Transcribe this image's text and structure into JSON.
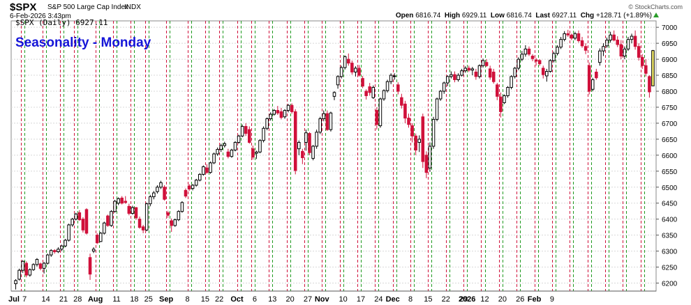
{
  "header": {
    "symbol": "$SPX",
    "description": "S&P 500 Large Cap Index",
    "exchange": "INDX",
    "datetime": "6-Feb-2026 3:43pm",
    "open_label": "Open",
    "open": "6816.74",
    "high_label": "High",
    "high": "6929.11",
    "low_label": "Low",
    "low": "6816.74",
    "last_label": "Last",
    "last": "6927.11",
    "chg_label": "Chg",
    "chg": "+128.71 (+1.89%)",
    "watermark": "© StockCharts.com"
  },
  "legend": {
    "text": "$SPX (Daily) 6927.11"
  },
  "annotation": "Seasonality - Monday",
  "colors": {
    "up": "#000000",
    "down": "#d0103a",
    "last": "#f2e96a",
    "monday_line": "#1f9a1f",
    "friday_line": "#d0103a",
    "annotation": "#1515d8",
    "grid": "#d8d8d8",
    "arrow": "#2a9d2a"
  },
  "chart_data": {
    "type": "candlestick",
    "title": "$SPX (Daily) 6927.11",
    "ylim": [
      6175,
      7020
    ],
    "y_ticks": [
      6200,
      6250,
      6300,
      6350,
      6400,
      6450,
      6500,
      6550,
      6600,
      6650,
      6700,
      6750,
      6800,
      6850,
      6900,
      6950,
      7000
    ],
    "x_labels": [
      "Jul",
      "7",
      "14",
      "21",
      "28",
      "Aug",
      "11",
      "18",
      "25",
      "Sep",
      "8",
      "15",
      "22",
      "Oct",
      "6",
      "13",
      "20",
      "27",
      "Nov",
      "10",
      "17",
      "24",
      "Dec",
      "8",
      "15",
      "22",
      "29",
      "2026",
      "12",
      "20",
      "26",
      "Feb",
      "9"
    ],
    "bold_labels": [
      "Jul",
      "Aug",
      "Sep",
      "Oct",
      "Nov",
      "Dec",
      "2026",
      "Feb"
    ],
    "candles": [
      [
        6198,
        6212,
        6180,
        6208
      ],
      [
        6212,
        6245,
        6208,
        6240
      ],
      [
        6240,
        6272,
        6232,
        6268
      ],
      [
        6262,
        6268,
        6218,
        6225
      ],
      [
        6225,
        6246,
        6220,
        6242
      ],
      [
        6242,
        6262,
        6238,
        6258
      ],
      [
        6258,
        6278,
        6252,
        6274
      ],
      [
        6260,
        6264,
        6240,
        6246
      ],
      [
        6246,
        6266,
        6230,
        6262
      ],
      [
        6262,
        6292,
        6258,
        6288
      ],
      [
        6288,
        6306,
        6282,
        6302
      ],
      [
        6302,
        6306,
        6292,
        6298
      ],
      [
        6298,
        6312,
        6294,
        6306
      ],
      [
        6306,
        6320,
        6300,
        6316
      ],
      [
        6316,
        6338,
        6312,
        6334
      ],
      [
        6334,
        6386,
        6330,
        6382
      ],
      [
        6382,
        6404,
        6376,
        6400
      ],
      [
        6400,
        6420,
        6396,
        6416
      ],
      [
        6420,
        6428,
        6395,
        6398
      ],
      [
        6400,
        6406,
        6358,
        6366
      ],
      [
        6430,
        6434,
        6352,
        6356
      ],
      [
        6280,
        6292,
        6210,
        6228
      ],
      [
        6300,
        6312,
        6294,
        6306
      ],
      [
        6350,
        6356,
        6322,
        6326
      ],
      [
        6330,
        6360,
        6328,
        6356
      ],
      [
        6356,
        6392,
        6352,
        6388
      ],
      [
        6410,
        6414,
        6376,
        6380
      ],
      [
        6380,
        6428,
        6376,
        6424
      ],
      [
        6424,
        6460,
        6420,
        6456
      ],
      [
        6450,
        6468,
        6444,
        6464
      ],
      [
        6466,
        6472,
        6446,
        6450
      ],
      [
        6456,
        6472,
        6448,
        6452
      ],
      [
        6440,
        6448,
        6412,
        6418
      ],
      [
        6418,
        6442,
        6414,
        6436
      ],
      [
        6436,
        6438,
        6398,
        6404
      ],
      [
        6400,
        6408,
        6370,
        6374
      ],
      [
        6376,
        6382,
        6356,
        6366
      ],
      [
        6366,
        6452,
        6362,
        6448
      ],
      [
        6448,
        6476,
        6440,
        6470
      ],
      [
        6470,
        6488,
        6462,
        6482
      ],
      [
        6486,
        6506,
        6480,
        6500
      ],
      [
        6500,
        6520,
        6494,
        6514
      ],
      [
        6500,
        6506,
        6458,
        6462
      ],
      [
        6420,
        6426,
        6404,
        6412
      ],
      [
        6395,
        6402,
        6360,
        6380
      ],
      [
        6380,
        6402,
        6376,
        6398
      ],
      [
        6398,
        6428,
        6394,
        6424
      ],
      [
        6424,
        6456,
        6420,
        6452
      ],
      [
        6490,
        6496,
        6466,
        6472
      ],
      [
        6504,
        6510,
        6488,
        6494
      ],
      [
        6496,
        6510,
        6490,
        6506
      ],
      [
        6506,
        6526,
        6502,
        6522
      ],
      [
        6522,
        6544,
        6518,
        6540
      ],
      [
        6540,
        6568,
        6536,
        6564
      ],
      [
        6560,
        6572,
        6542,
        6546
      ],
      [
        6546,
        6580,
        6542,
        6576
      ],
      [
        6576,
        6608,
        6572,
        6604
      ],
      [
        6604,
        6624,
        6598,
        6618
      ],
      [
        6618,
        6636,
        6610,
        6630
      ],
      [
        6630,
        6642,
        6624,
        6636
      ],
      [
        6610,
        6620,
        6590,
        6596
      ],
      [
        6596,
        6620,
        6592,
        6616
      ],
      [
        6616,
        6644,
        6612,
        6640
      ],
      [
        6640,
        6664,
        6636,
        6660
      ],
      [
        6660,
        6696,
        6656,
        6690
      ],
      [
        6690,
        6700,
        6660,
        6668
      ],
      [
        6680,
        6690,
        6636,
        6640
      ],
      [
        6620,
        6630,
        6586,
        6594
      ],
      [
        6606,
        6614,
        6588,
        6610
      ],
      [
        6610,
        6650,
        6606,
        6646
      ],
      [
        6646,
        6690,
        6640,
        6684
      ],
      [
        6684,
        6718,
        6678,
        6714
      ],
      [
        6714,
        6734,
        6708,
        6728
      ],
      [
        6728,
        6744,
        6724,
        6740
      ],
      [
        6740,
        6754,
        6726,
        6732
      ],
      [
        6736,
        6748,
        6712,
        6718
      ],
      [
        6720,
        6744,
        6714,
        6740
      ],
      [
        6740,
        6760,
        6734,
        6756
      ],
      [
        6756,
        6762,
        6730,
        6736
      ],
      [
        6736,
        6744,
        6540,
        6552
      ],
      [
        6620,
        6646,
        6600,
        6640
      ],
      [
        6612,
        6620,
        6572,
        6592
      ],
      [
        6640,
        6680,
        6614,
        6670
      ],
      [
        6668,
        6672,
        6600,
        6608
      ],
      [
        6590,
        6632,
        6584,
        6628
      ],
      [
        6628,
        6680,
        6620,
        6672
      ],
      [
        6672,
        6720,
        6666,
        6714
      ],
      [
        6714,
        6740,
        6706,
        6730
      ],
      [
        6730,
        6740,
        6676,
        6680
      ],
      [
        6680,
        6736,
        6674,
        6732
      ],
      [
        6784,
        6800,
        6772,
        6796
      ],
      [
        6820,
        6850,
        6808,
        6846
      ],
      [
        6846,
        6880,
        6840,
        6874
      ],
      [
        6874,
        6912,
        6868,
        6908
      ],
      [
        6900,
        6918,
        6880,
        6888
      ],
      [
        6888,
        6896,
        6852,
        6860
      ],
      [
        6860,
        6878,
        6846,
        6872
      ],
      [
        6872,
        6882,
        6846,
        6850
      ],
      [
        6840,
        6848,
        6810,
        6816
      ],
      [
        6800,
        6806,
        6774,
        6786
      ],
      [
        6814,
        6826,
        6786,
        6796
      ],
      [
        6780,
        6818,
        6776,
        6812
      ],
      [
        6740,
        6750,
        6680,
        6696
      ],
      [
        6692,
        6780,
        6686,
        6776
      ],
      [
        6776,
        6806,
        6770,
        6802
      ],
      [
        6802,
        6836,
        6796,
        6830
      ],
      [
        6830,
        6856,
        6822,
        6850
      ],
      [
        6846,
        6856,
        6836,
        6848
      ],
      [
        6820,
        6828,
        6790,
        6800
      ],
      [
        6780,
        6792,
        6746,
        6756
      ],
      [
        6760,
        6770,
        6700,
        6716
      ],
      [
        6716,
        6730,
        6686,
        6696
      ],
      [
        6692,
        6700,
        6640,
        6660
      ],
      [
        6660,
        6668,
        6600,
        6616
      ],
      [
        6640,
        6662,
        6610,
        6650
      ],
      [
        6720,
        6730,
        6560,
        6580
      ],
      [
        6600,
        6612,
        6528,
        6546
      ],
      [
        6560,
        6640,
        6548,
        6628
      ],
      [
        6628,
        6720,
        6620,
        6712
      ],
      [
        6712,
        6780,
        6706,
        6776
      ],
      [
        6776,
        6804,
        6770,
        6800
      ],
      [
        6800,
        6830,
        6792,
        6826
      ],
      [
        6826,
        6850,
        6816,
        6846
      ],
      [
        6846,
        6862,
        6840,
        6852
      ],
      [
        6852,
        6862,
        6828,
        6836
      ],
      [
        6836,
        6856,
        6830,
        6850
      ],
      [
        6850,
        6870,
        6846,
        6864
      ],
      [
        6864,
        6878,
        6858,
        6872
      ],
      [
        6872,
        6880,
        6860,
        6866
      ],
      [
        6866,
        6876,
        6850,
        6870
      ],
      [
        6860,
        6870,
        6836,
        6846
      ],
      [
        6846,
        6884,
        6840,
        6880
      ],
      [
        6880,
        6902,
        6874,
        6896
      ],
      [
        6890,
        6900,
        6876,
        6880
      ],
      [
        6870,
        6880,
        6836,
        6844
      ],
      [
        6860,
        6870,
        6824,
        6830
      ],
      [
        6820,
        6826,
        6772,
        6784
      ],
      [
        6782,
        6796,
        6718,
        6736
      ],
      [
        6764,
        6790,
        6760,
        6786
      ],
      [
        6786,
        6816,
        6780,
        6812
      ],
      [
        6812,
        6850,
        6806,
        6846
      ],
      [
        6846,
        6876,
        6840,
        6872
      ],
      [
        6872,
        6906,
        6866,
        6900
      ],
      [
        6900,
        6926,
        6894,
        6916
      ],
      [
        6916,
        6944,
        6908,
        6932
      ],
      [
        6932,
        6940,
        6910,
        6916
      ],
      [
        6910,
        6916,
        6894,
        6902
      ],
      [
        6898,
        6904,
        6880,
        6894
      ],
      [
        6896,
        6900,
        6880,
        6886
      ],
      [
        6872,
        6880,
        6840,
        6852
      ],
      [
        6848,
        6870,
        6830,
        6862
      ],
      [
        6862,
        6900,
        6858,
        6896
      ],
      [
        6896,
        6924,
        6890,
        6918
      ],
      [
        6918,
        6944,
        6912,
        6938
      ],
      [
        6938,
        6970,
        6932,
        6962
      ],
      [
        6962,
        6988,
        6956,
        6980
      ],
      [
        6980,
        6992,
        6970,
        6976
      ],
      [
        6976,
        6980,
        6960,
        6966
      ],
      [
        6966,
        6986,
        6960,
        6980
      ],
      [
        6980,
        6990,
        6952,
        6958
      ],
      [
        6958,
        6970,
        6936,
        6942
      ],
      [
        6940,
        6950,
        6916,
        6928
      ],
      [
        6880,
        6890,
        6790,
        6800
      ],
      [
        6806,
        6842,
        6800,
        6836
      ],
      [
        6860,
        6870,
        6836,
        6842
      ],
      [
        6890,
        6934,
        6880,
        6926
      ],
      [
        6926,
        6950,
        6910,
        6940
      ],
      [
        6942,
        6968,
        6936,
        6960
      ],
      [
        6960,
        6986,
        6952,
        6976
      ],
      [
        6976,
        6990,
        6956,
        6960
      ],
      [
        6960,
        6972,
        6938,
        6946
      ],
      [
        6946,
        6960,
        6900,
        6910
      ],
      [
        6910,
        6940,
        6900,
        6932
      ],
      [
        6932,
        6970,
        6926,
        6962
      ],
      [
        6962,
        6980,
        6950,
        6972
      ],
      [
        6972,
        6990,
        6930,
        6940
      ],
      [
        6940,
        6950,
        6896,
        6906
      ],
      [
        6906,
        6916,
        6870,
        6880
      ],
      [
        6880,
        6900,
        6846,
        6856
      ],
      [
        6846,
        6850,
        6780,
        6798
      ],
      [
        6816.74,
        6929.11,
        6816.74,
        6927.11
      ]
    ],
    "monday_after_candle": [
      3,
      9,
      14,
      18,
      24,
      29,
      34,
      38,
      44,
      50,
      55,
      59,
      64,
      68,
      73,
      78,
      83,
      88,
      93,
      98,
      103,
      108,
      113,
      118,
      123,
      128,
      133,
      138,
      143,
      148,
      153,
      158,
      163,
      168,
      173,
      178
    ],
    "friday_after_candle": [
      2,
      8,
      13,
      17,
      23,
      28,
      33,
      37,
      43,
      49,
      54,
      58,
      63,
      67,
      72,
      77,
      82,
      87,
      92,
      97,
      102,
      107,
      112,
      117,
      122,
      127,
      132,
      137,
      142,
      147,
      152,
      157,
      162,
      167,
      172,
      177
    ]
  }
}
